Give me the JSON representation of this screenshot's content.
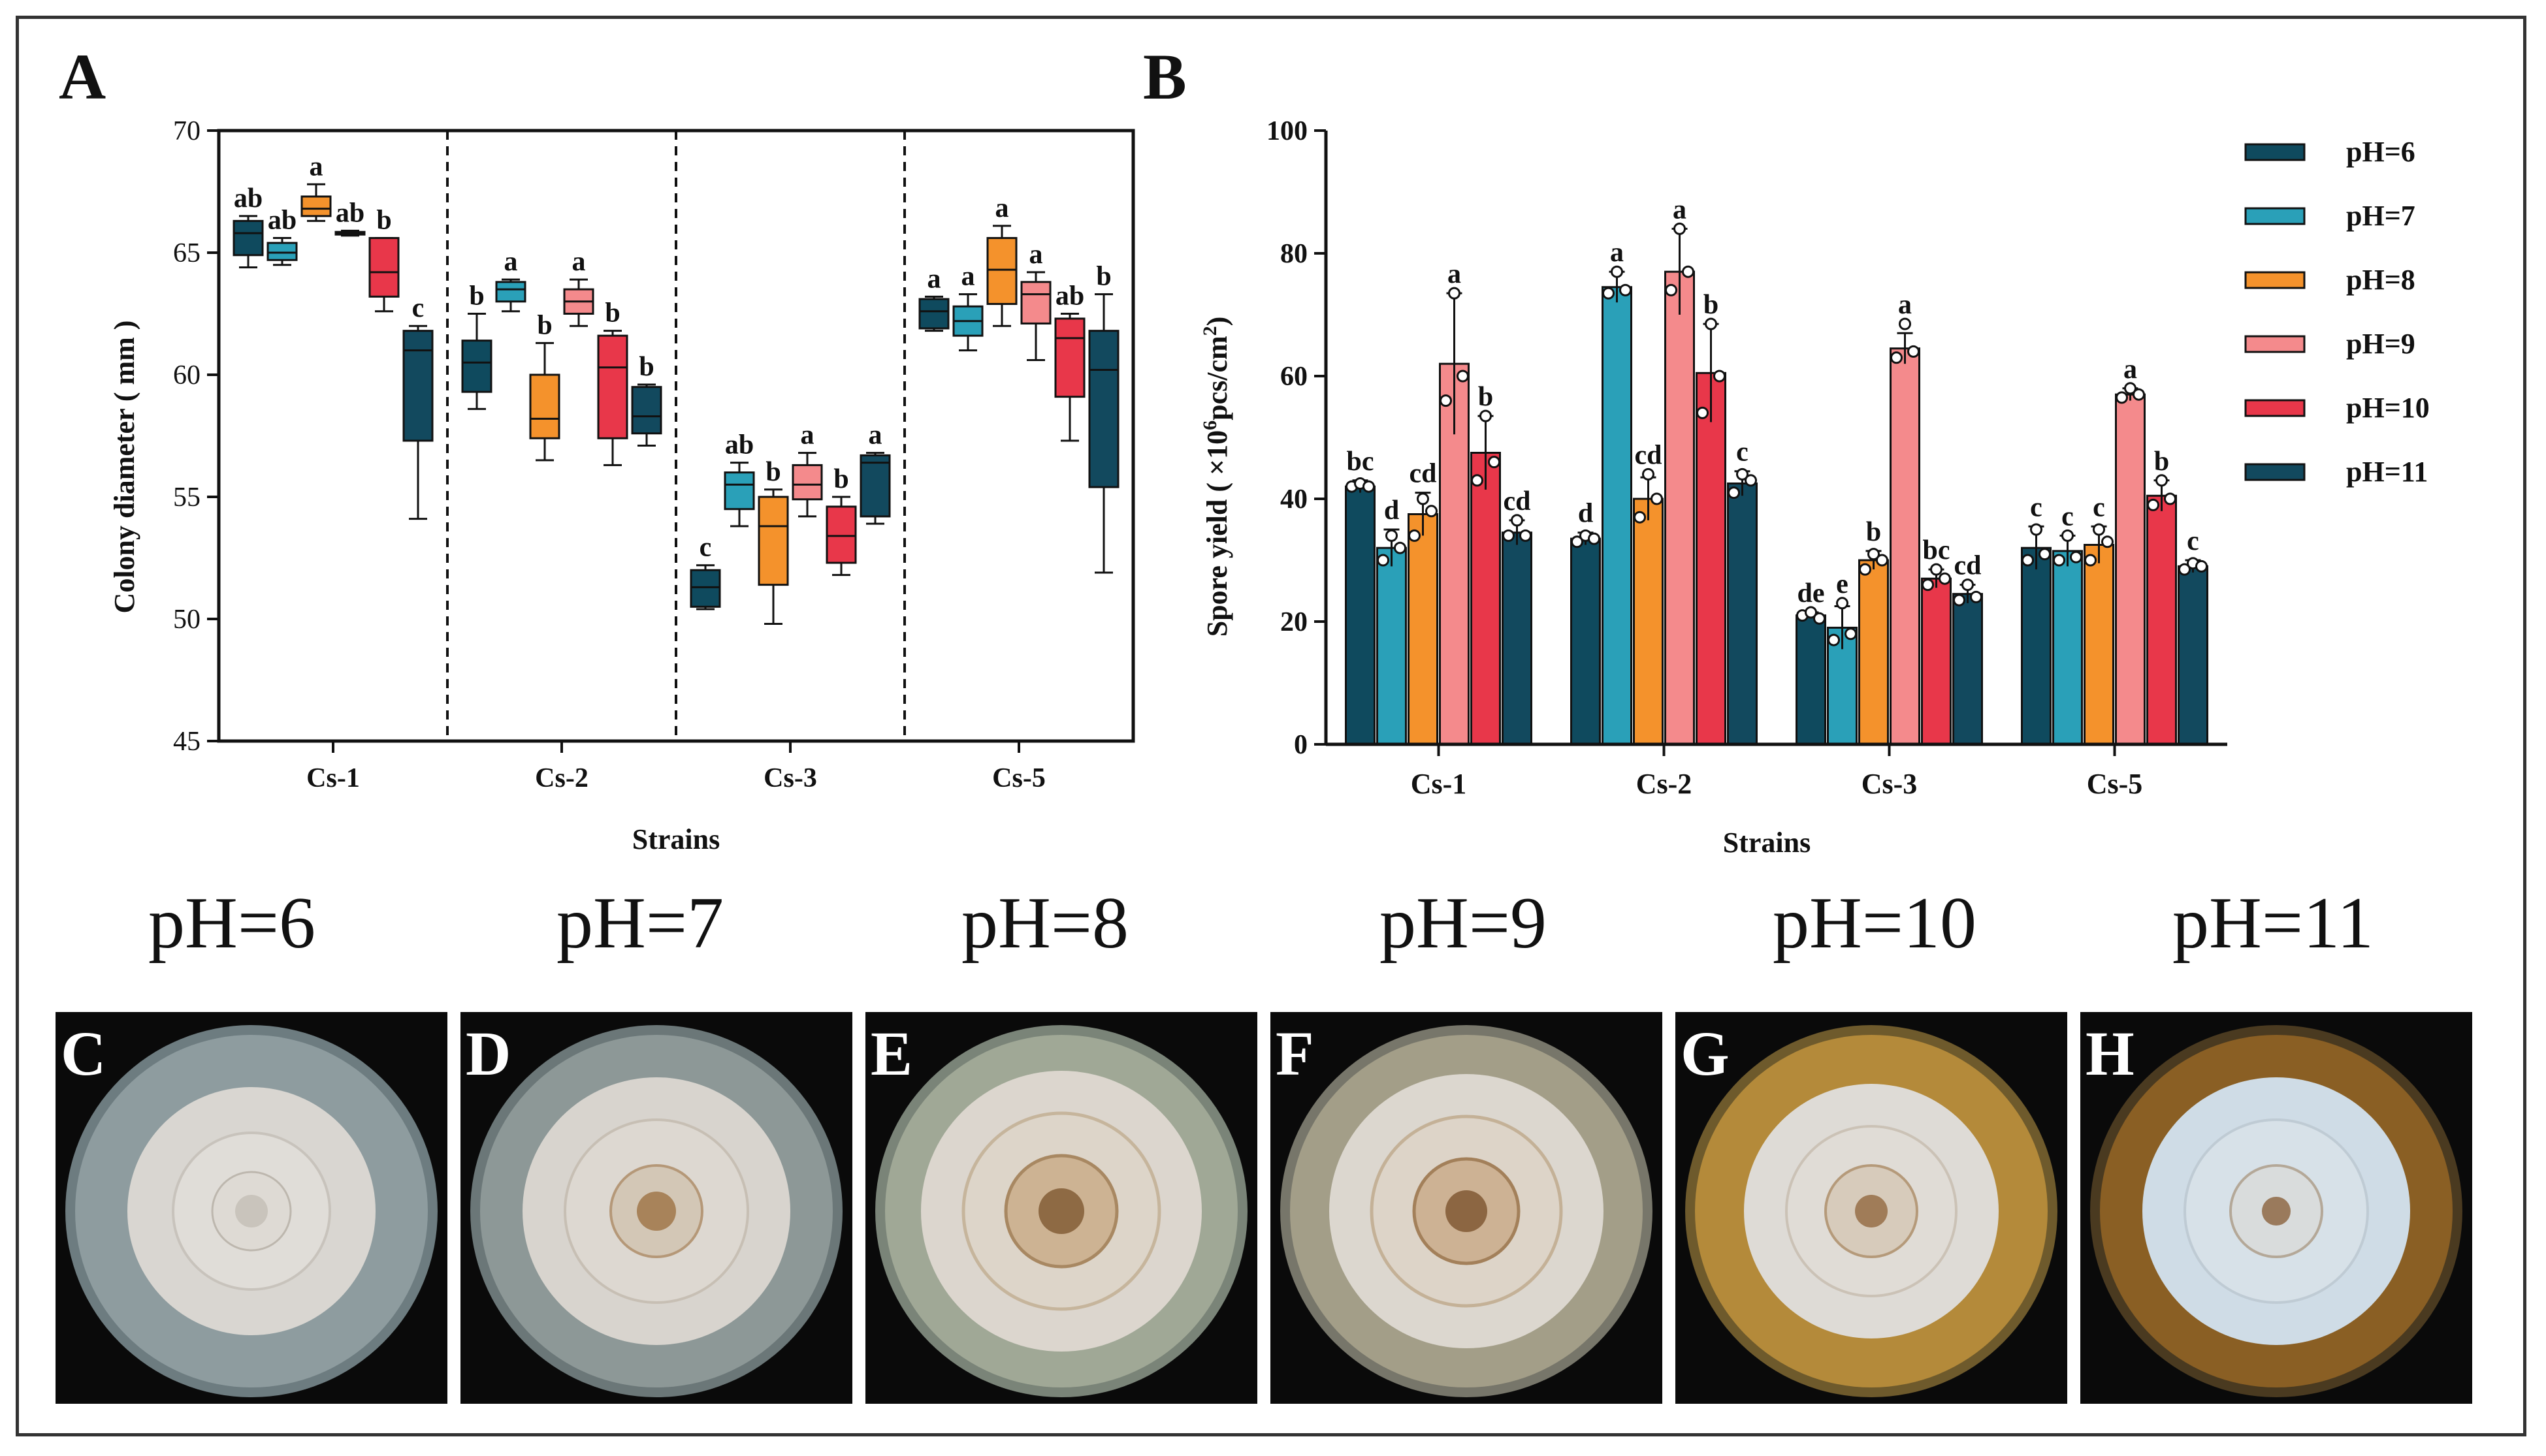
{
  "panels": {
    "a_letter": "A",
    "b_letter": "B"
  },
  "legend": {
    "entries": [
      "pH=6",
      "pH=7",
      "pH=8",
      "pH=9",
      "pH=10",
      "pH=11"
    ]
  },
  "colors": {
    "pH=6": "#0f4a5e",
    "pH=7": "#2aa0b8",
    "pH=8": "#f4922c",
    "pH=9": "#f48a8c",
    "pH=10": "#e8374a",
    "pH=11": "#12495e",
    "frame": "#333333"
  },
  "plates": [
    {
      "label": "pH=6",
      "letter": "C"
    },
    {
      "label": "pH=7",
      "letter": "D"
    },
    {
      "label": "pH=8",
      "letter": "E"
    },
    {
      "label": "pH=9",
      "letter": "F"
    },
    {
      "label": "pH=10",
      "letter": "G"
    },
    {
      "label": "pH=11",
      "letter": "H"
    }
  ],
  "chart_data": [
    {
      "type": "box",
      "panel": "A",
      "ylabel": "Colony diameter ( mm )",
      "xlabel": "Strains",
      "ylim": [
        45,
        70
      ],
      "yticks": [
        45,
        50,
        55,
        60,
        65,
        70
      ],
      "categories": [
        "Cs-1",
        "Cs-2",
        "Cs-3",
        "Cs-5"
      ],
      "series_names": [
        "pH=6",
        "pH=7",
        "pH=8",
        "pH=9",
        "pH=10",
        "pH=11"
      ],
      "groups": [
        {
          "category": "Cs-1",
          "boxes": [
            {
              "min": 64.4,
              "q1": 64.9,
              "median": 65.8,
              "q3": 66.3,
              "max": 66.5,
              "letter": "ab"
            },
            {
              "min": 64.5,
              "q1": 64.7,
              "median": 65.0,
              "q3": 65.4,
              "max": 65.6,
              "letter": "ab"
            },
            {
              "min": 66.3,
              "q1": 66.5,
              "median": 66.8,
              "q3": 67.3,
              "max": 67.8,
              "letter": "a"
            },
            {
              "min": 65.7,
              "q1": 65.75,
              "median": 65.8,
              "q3": 65.85,
              "max": 65.9,
              "letter": "ab"
            },
            {
              "min": 62.6,
              "q1": 63.2,
              "median": 64.2,
              "q3": 65.6,
              "max": 65.6,
              "letter": "b"
            },
            {
              "min": 54.1,
              "q1": 57.3,
              "median": 61.0,
              "q3": 61.8,
              "max": 62.0,
              "letter": "c"
            }
          ]
        },
        {
          "category": "Cs-2",
          "boxes": [
            {
              "min": 58.6,
              "q1": 59.3,
              "median": 60.5,
              "q3": 61.4,
              "max": 62.5,
              "letter": "b"
            },
            {
              "min": 62.6,
              "q1": 63.0,
              "median": 63.5,
              "q3": 63.8,
              "max": 63.9,
              "letter": "a"
            },
            {
              "min": 56.5,
              "q1": 57.4,
              "median": 58.2,
              "q3": 60.0,
              "max": 61.3,
              "letter": "b"
            },
            {
              "min": 62.0,
              "q1": 62.5,
              "median": 63.0,
              "q3": 63.5,
              "max": 63.9,
              "letter": "a"
            },
            {
              "min": 56.3,
              "q1": 57.4,
              "median": 60.3,
              "q3": 61.6,
              "max": 61.8,
              "letter": "b"
            },
            {
              "min": 57.1,
              "q1": 57.6,
              "median": 58.3,
              "q3": 59.5,
              "max": 59.6,
              "letter": "b"
            }
          ]
        },
        {
          "category": "Cs-3",
          "boxes": [
            {
              "min": 50.4,
              "q1": 50.5,
              "median": 51.3,
              "q3": 52.0,
              "max": 52.2,
              "letter": "c"
            },
            {
              "min": 53.8,
              "q1": 54.5,
              "median": 55.5,
              "q3": 56.0,
              "max": 56.4,
              "letter": "ab"
            },
            {
              "min": 49.8,
              "q1": 51.4,
              "median": 53.8,
              "q3": 55.0,
              "max": 55.3,
              "letter": "b"
            },
            {
              "min": 54.2,
              "q1": 54.9,
              "median": 55.5,
              "q3": 56.3,
              "max": 56.8,
              "letter": "a"
            },
            {
              "min": 51.8,
              "q1": 52.3,
              "median": 53.4,
              "q3": 54.6,
              "max": 55.0,
              "letter": "b"
            },
            {
              "min": 53.9,
              "q1": 54.2,
              "median": 56.4,
              "q3": 56.7,
              "max": 56.8,
              "letter": "a"
            }
          ]
        },
        {
          "category": "Cs-5",
          "boxes": [
            {
              "min": 61.8,
              "q1": 61.9,
              "median": 62.6,
              "q3": 63.1,
              "max": 63.2,
              "letter": "a"
            },
            {
              "min": 61.0,
              "q1": 61.6,
              "median": 62.2,
              "q3": 62.8,
              "max": 63.3,
              "letter": "a"
            },
            {
              "min": 62.0,
              "q1": 62.9,
              "median": 64.3,
              "q3": 65.6,
              "max": 66.1,
              "letter": "a"
            },
            {
              "min": 60.6,
              "q1": 62.1,
              "median": 63.3,
              "q3": 63.8,
              "max": 64.2,
              "letter": "a"
            },
            {
              "min": 57.3,
              "q1": 59.1,
              "median": 61.5,
              "q3": 62.3,
              "max": 62.5,
              "letter": "ab"
            },
            {
              "min": 51.9,
              "q1": 55.4,
              "median": 60.2,
              "q3": 61.8,
              "max": 63.3,
              "letter": "b"
            }
          ]
        }
      ]
    },
    {
      "type": "bar",
      "panel": "B",
      "ylabel_main": "Spore yield ( ×10",
      "ylabel_sup1": "6",
      "ylabel_mid": "pcs/cm",
      "ylabel_sup2": "2",
      "ylabel_end": ")",
      "xlabel": "Strains",
      "ylim": [
        0,
        100
      ],
      "yticks": [
        0,
        20,
        40,
        60,
        80,
        100
      ],
      "categories": [
        "Cs-1",
        "Cs-2",
        "Cs-3",
        "Cs-5"
      ],
      "series": [
        {
          "name": "pH=6",
          "values": [
            42,
            33.5,
            21,
            32
          ],
          "errors": [
            1,
            1,
            0.5,
            3.5
          ],
          "letters": [
            "bc",
            "d",
            "de",
            "c"
          ],
          "points": [
            [
              42,
              42.5,
              42
            ],
            [
              33,
              34,
              33.5
            ],
            [
              21,
              21.5,
              20.5
            ],
            [
              30,
              35,
              31
            ]
          ]
        },
        {
          "name": "pH=7",
          "values": [
            32,
            74.5,
            19,
            31.5
          ],
          "errors": [
            3,
            2.5,
            3.5,
            2.5
          ],
          "letters": [
            "d",
            "a",
            "e",
            "c"
          ],
          "points": [
            [
              30,
              34,
              32
            ],
            [
              73.5,
              77,
              74
            ],
            [
              17,
              23,
              18
            ],
            [
              30,
              34,
              30.5
            ]
          ]
        },
        {
          "name": "pH=8",
          "values": [
            37.5,
            40,
            30,
            32.5
          ],
          "errors": [
            3.5,
            3.5,
            1.5,
            3
          ],
          "letters": [
            "cd",
            "cd",
            "b",
            "c"
          ],
          "points": [
            [
              34,
              40,
              38
            ],
            [
              37,
              44,
              40
            ],
            [
              28.5,
              31,
              30
            ],
            [
              30,
              35,
              33
            ]
          ]
        },
        {
          "name": "pH=9",
          "values": [
            62,
            77,
            64.5,
            57
          ],
          "errors": [
            11.5,
            7,
            2.5,
            1
          ],
          "letters": [
            "a",
            "a",
            "a",
            "a"
          ],
          "points": [
            [
              56,
              73.5,
              60
            ],
            [
              74,
              84,
              77
            ],
            [
              63,
              68.5,
              64
            ],
            [
              56.5,
              58,
              57
            ]
          ]
        },
        {
          "name": "pH=10",
          "values": [
            47.5,
            60.5,
            27,
            40.5
          ],
          "errors": [
            6,
            8,
            1.5,
            2.5
          ],
          "letters": [
            "b",
            "b",
            "bc",
            "b"
          ],
          "points": [
            [
              43,
              53.5,
              46
            ],
            [
              54,
              68.5,
              60
            ],
            [
              26,
              28.5,
              27
            ],
            [
              39,
              43,
              40
            ]
          ]
        },
        {
          "name": "pH=11",
          "values": [
            34.5,
            42.5,
            24.5,
            29
          ],
          "errors": [
            2,
            2,
            1.5,
            1
          ],
          "letters": [
            "cd",
            "c",
            "cd",
            "c"
          ],
          "points": [
            [
              34,
              36.5,
              34
            ],
            [
              41,
              44,
              43
            ],
            [
              23.5,
              26,
              24
            ],
            [
              28.5,
              29.5,
              29
            ]
          ]
        }
      ]
    }
  ]
}
